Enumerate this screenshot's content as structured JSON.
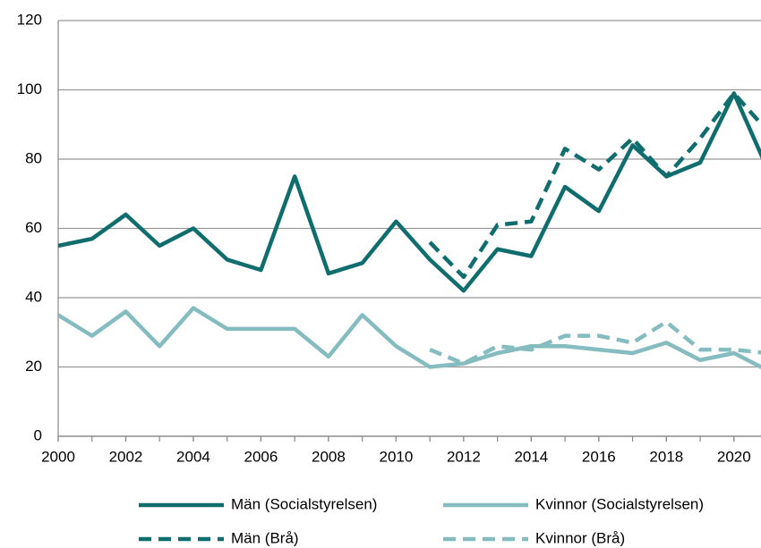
{
  "chart_data": {
    "type": "line",
    "x": [
      2000,
      2001,
      2002,
      2003,
      2004,
      2005,
      2006,
      2007,
      2008,
      2009,
      2010,
      2011,
      2012,
      2013,
      2014,
      2015,
      2016,
      2017,
      2018,
      2019,
      2020,
      2021
    ],
    "xlim": [
      2000,
      2020.8
    ],
    "xticks": [
      2000,
      2002,
      2004,
      2006,
      2008,
      2010,
      2012,
      2014,
      2016,
      2018,
      2020
    ],
    "ylim": [
      0,
      120
    ],
    "yticks": [
      0,
      20,
      40,
      60,
      80,
      100,
      120
    ],
    "grid": true,
    "legend": "bottom",
    "series": [
      {
        "name": "Män (Socialstyrelsen)",
        "color": "#106d6e",
        "dash": false,
        "values": [
          55,
          57,
          64,
          55,
          60,
          51,
          48,
          75,
          47,
          50,
          62,
          51,
          42,
          54,
          52,
          72,
          65,
          84,
          75,
          79,
          99,
          77
        ]
      },
      {
        "name": "Kvinnor (Socialstyrelsen)",
        "color": "#84bcbf",
        "dash": false,
        "values": [
          35,
          29,
          36,
          26,
          37,
          31,
          31,
          31,
          23,
          35,
          26,
          20,
          21,
          24,
          26,
          26,
          25,
          24,
          27,
          22,
          24,
          19
        ]
      },
      {
        "name": "Män (Brå)",
        "color": "#106d6e",
        "dash": true,
        "values": [
          null,
          null,
          null,
          null,
          null,
          null,
          null,
          null,
          null,
          null,
          null,
          56,
          46,
          61,
          62,
          83,
          77,
          86,
          75,
          86,
          99,
          88
        ]
      },
      {
        "name": "Kvinnor (Brå)",
        "color": "#84bcbf",
        "dash": true,
        "values": [
          null,
          null,
          null,
          null,
          null,
          null,
          null,
          null,
          null,
          null,
          null,
          25,
          21,
          26,
          25,
          29,
          29,
          27,
          33,
          25,
          25,
          24
        ]
      }
    ]
  }
}
